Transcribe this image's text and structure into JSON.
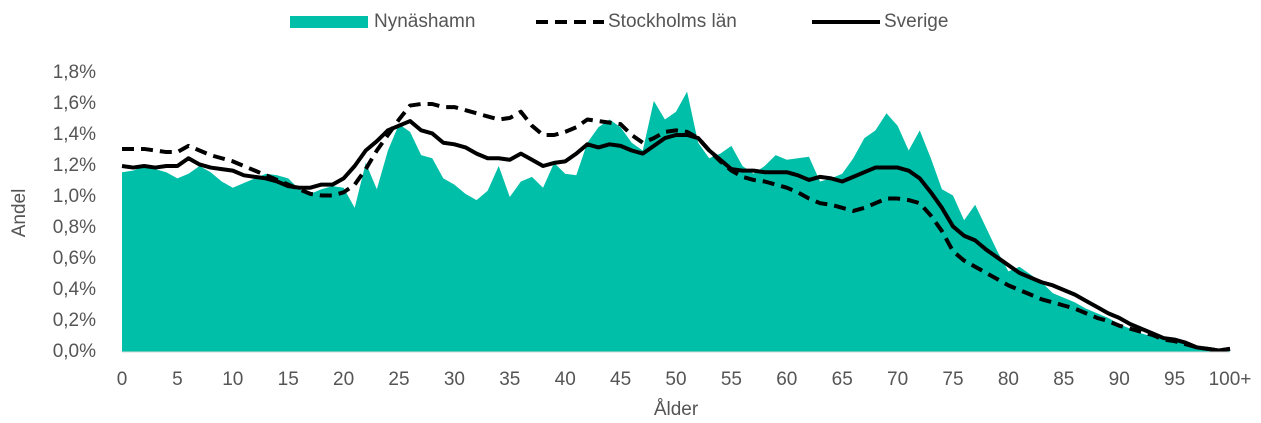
{
  "chart_data": {
    "type": "line",
    "x_label": "Ålder",
    "y_label": "Andel",
    "categories": [
      "0",
      null,
      null,
      null,
      null,
      "5",
      null,
      null,
      null,
      null,
      "10",
      null,
      null,
      null,
      null,
      "15",
      null,
      null,
      null,
      null,
      "20",
      null,
      null,
      null,
      null,
      "25",
      null,
      null,
      null,
      null,
      "30",
      null,
      null,
      null,
      null,
      "35",
      null,
      null,
      null,
      null,
      "40",
      null,
      null,
      null,
      null,
      "45",
      null,
      null,
      null,
      null,
      "50",
      null,
      null,
      null,
      null,
      "55",
      null,
      null,
      null,
      null,
      "60",
      null,
      null,
      null,
      null,
      "65",
      null,
      null,
      null,
      null,
      "70",
      null,
      null,
      null,
      null,
      "75",
      null,
      null,
      null,
      null,
      "80",
      null,
      null,
      null,
      null,
      "85",
      null,
      null,
      null,
      null,
      "90",
      null,
      null,
      null,
      null,
      "95",
      null,
      null,
      null,
      null,
      "100+"
    ],
    "ylim": [
      0,
      1.8
    ],
    "yticks": [
      {
        "value": 0,
        "label": "0,0%"
      },
      {
        "value": 0.2,
        "label": "0,2%"
      },
      {
        "value": 0.4,
        "label": "0,4%"
      },
      {
        "value": 0.6,
        "label": "0,6%"
      },
      {
        "value": 0.8,
        "label": "0,8%"
      },
      {
        "value": 1.0,
        "label": "1,0%"
      },
      {
        "value": 1.2,
        "label": "1,2%"
      },
      {
        "value": 1.4,
        "label": "1,4%"
      },
      {
        "value": 1.6,
        "label": "1,6%"
      },
      {
        "value": 1.8,
        "label": "1,8%"
      }
    ],
    "legend": "top",
    "series": [
      {
        "name": "Nynäshamn",
        "color": "#00bfa8",
        "kind": "area",
        "values": [
          1.16,
          1.17,
          1.2,
          1.18,
          1.16,
          1.12,
          1.15,
          1.2,
          1.16,
          1.1,
          1.06,
          1.09,
          1.12,
          1.15,
          1.14,
          1.12,
          1.05,
          1.02,
          1.05,
          1.07,
          1.06,
          0.93,
          1.22,
          1.05,
          1.3,
          1.47,
          1.42,
          1.27,
          1.25,
          1.12,
          1.08,
          1.02,
          0.98,
          1.04,
          1.2,
          1.0,
          1.1,
          1.13,
          1.06,
          1.22,
          1.15,
          1.14,
          1.35,
          1.45,
          1.5,
          1.45,
          1.35,
          1.3,
          1.62,
          1.5,
          1.55,
          1.68,
          1.35,
          1.25,
          1.28,
          1.33,
          1.2,
          1.15,
          1.2,
          1.27,
          1.24,
          1.25,
          1.26,
          1.1,
          1.12,
          1.15,
          1.25,
          1.38,
          1.43,
          1.54,
          1.46,
          1.3,
          1.43,
          1.25,
          1.05,
          1.01,
          0.85,
          0.95,
          0.8,
          0.65,
          0.52,
          0.55,
          0.5,
          0.45,
          0.38,
          0.35,
          0.32,
          0.28,
          0.25,
          0.22,
          0.18,
          0.15,
          0.12,
          0.1,
          0.08,
          0.07,
          0.05,
          0.03,
          0.02,
          0.01,
          0.02
        ]
      },
      {
        "name": "Stockholms län",
        "color": "#000000",
        "kind": "dashed",
        "values": [
          1.31,
          1.31,
          1.31,
          1.3,
          1.29,
          1.29,
          1.33,
          1.3,
          1.27,
          1.25,
          1.23,
          1.2,
          1.17,
          1.14,
          1.11,
          1.08,
          1.05,
          1.02,
          1.01,
          1.01,
          1.03,
          1.08,
          1.18,
          1.3,
          1.4,
          1.5,
          1.59,
          1.6,
          1.6,
          1.58,
          1.58,
          1.56,
          1.54,
          1.52,
          1.5,
          1.51,
          1.55,
          1.46,
          1.4,
          1.4,
          1.42,
          1.45,
          1.5,
          1.49,
          1.48,
          1.47,
          1.4,
          1.35,
          1.38,
          1.42,
          1.43,
          1.42,
          1.38,
          1.3,
          1.23,
          1.17,
          1.13,
          1.11,
          1.1,
          1.08,
          1.06,
          1.03,
          0.99,
          0.96,
          0.95,
          0.93,
          0.91,
          0.93,
          0.96,
          0.99,
          0.99,
          0.98,
          0.96,
          0.88,
          0.78,
          0.65,
          0.59,
          0.55,
          0.51,
          0.47,
          0.43,
          0.4,
          0.37,
          0.34,
          0.32,
          0.3,
          0.28,
          0.25,
          0.22,
          0.2,
          0.17,
          0.15,
          0.13,
          0.11,
          0.08,
          0.07,
          0.05,
          0.03,
          0.02,
          0.01,
          0.02
        ]
      },
      {
        "name": "Sverige",
        "color": "#000000",
        "kind": "solid",
        "values": [
          1.2,
          1.19,
          1.2,
          1.19,
          1.2,
          1.2,
          1.25,
          1.21,
          1.19,
          1.18,
          1.17,
          1.14,
          1.13,
          1.12,
          1.1,
          1.07,
          1.06,
          1.06,
          1.08,
          1.08,
          1.12,
          1.2,
          1.3,
          1.36,
          1.43,
          1.46,
          1.49,
          1.43,
          1.41,
          1.35,
          1.34,
          1.32,
          1.28,
          1.25,
          1.25,
          1.24,
          1.28,
          1.24,
          1.2,
          1.22,
          1.23,
          1.28,
          1.34,
          1.32,
          1.34,
          1.33,
          1.3,
          1.28,
          1.33,
          1.38,
          1.4,
          1.4,
          1.38,
          1.3,
          1.24,
          1.18,
          1.17,
          1.17,
          1.16,
          1.16,
          1.16,
          1.14,
          1.11,
          1.13,
          1.12,
          1.1,
          1.13,
          1.16,
          1.19,
          1.19,
          1.19,
          1.17,
          1.12,
          1.03,
          0.93,
          0.81,
          0.75,
          0.72,
          0.66,
          0.61,
          0.56,
          0.51,
          0.48,
          0.45,
          0.43,
          0.4,
          0.37,
          0.33,
          0.29,
          0.25,
          0.22,
          0.18,
          0.15,
          0.12,
          0.09,
          0.08,
          0.06,
          0.03,
          0.02,
          0.01,
          0.02
        ]
      }
    ]
  }
}
